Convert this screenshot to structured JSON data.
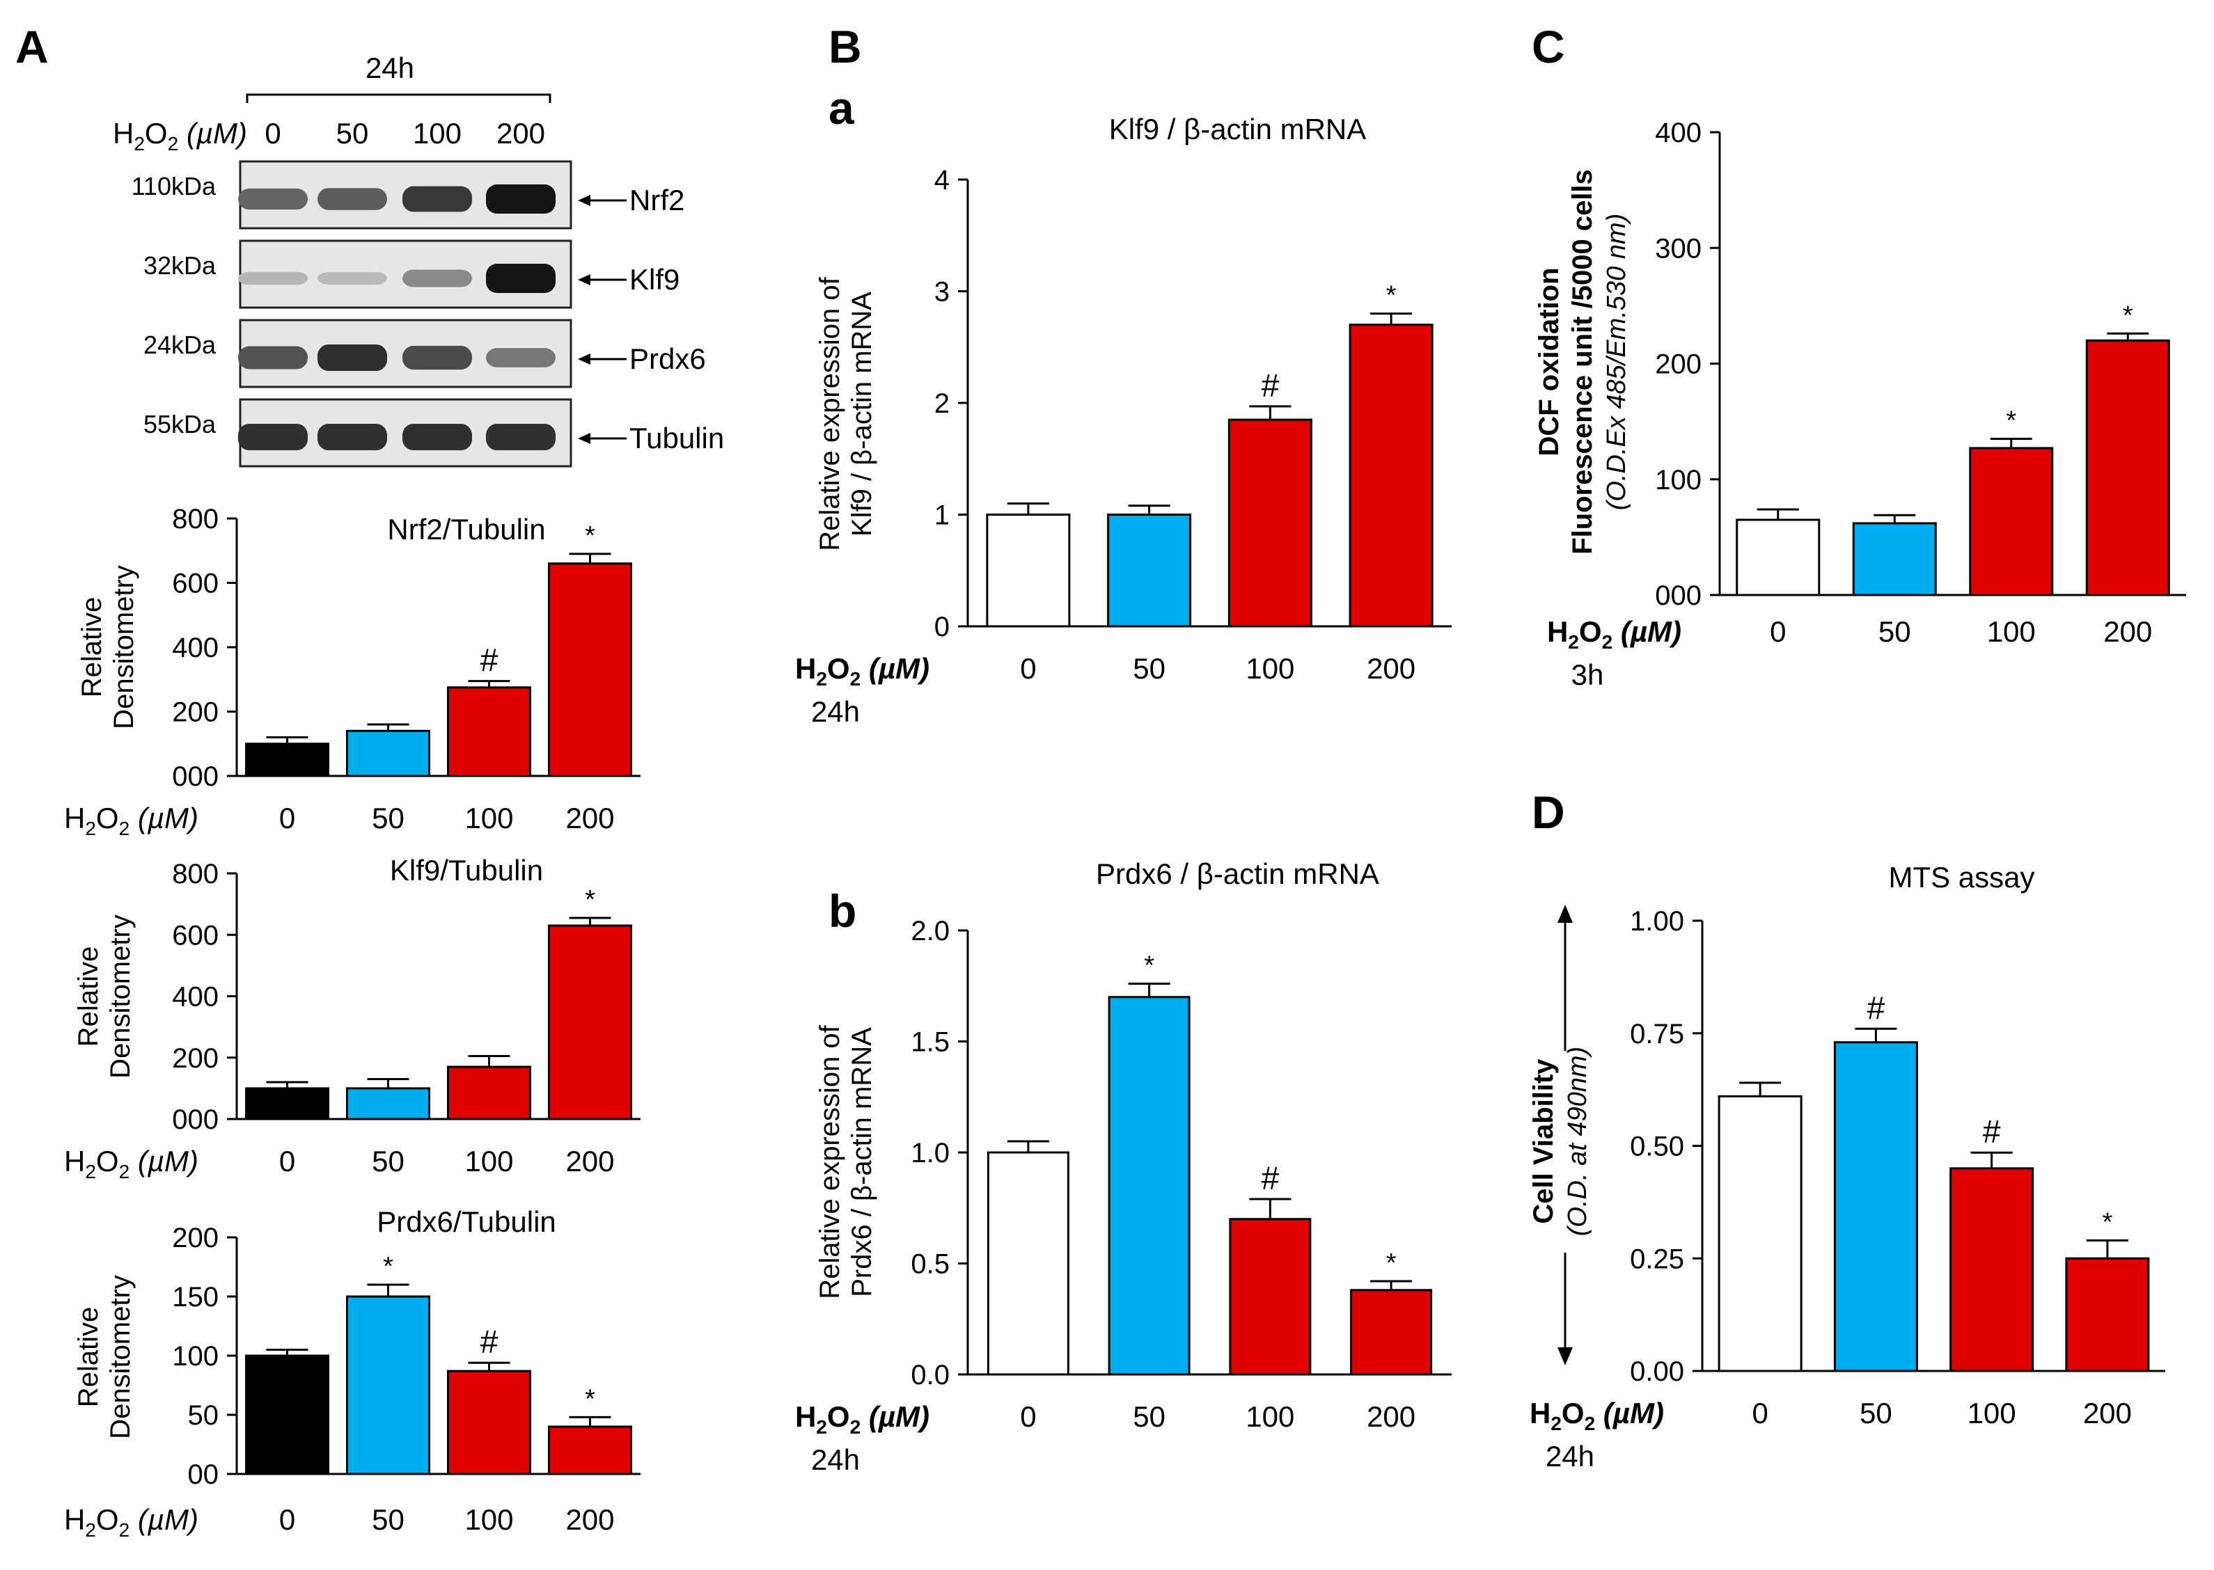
{
  "figure": {
    "background": "#ffffff"
  },
  "colors": {
    "black": "#000000",
    "white": "#ffffff",
    "blue": "#00aeef",
    "red": "#e00000"
  },
  "panel_labels": {
    "A": "A",
    "B": "B",
    "a": "a",
    "b": "b",
    "C": "C",
    "D": "D"
  },
  "blot": {
    "time": "24h",
    "treatment_label": "H2O2 (µM)",
    "doses": [
      "0",
      "50",
      "100",
      "200"
    ],
    "bands": [
      {
        "kda": "110kDa",
        "name": "Nrf2",
        "intensities": [
          0.55,
          0.6,
          0.8,
          1.0
        ]
      },
      {
        "kda": "32kDa",
        "name": "Klf9",
        "intensities": [
          0.1,
          0.08,
          0.35,
          1.0
        ]
      },
      {
        "kda": "24kDa",
        "name": "Prdx6",
        "intensities": [
          0.65,
          0.85,
          0.7,
          0.45
        ]
      },
      {
        "kda": "55kDa",
        "name": "Tubulin",
        "intensities": [
          0.85,
          0.85,
          0.85,
          0.85
        ]
      }
    ]
  },
  "chart_data": [
    {
      "id": "A1",
      "type": "bar",
      "title": "Nrf2/Tubulin",
      "ylabel": [
        "Relative",
        "Densitometry"
      ],
      "xlabel_prefix": "H2O2 (µM)",
      "categories": [
        "0",
        "50",
        "100",
        "200"
      ],
      "values": [
        100,
        140,
        275,
        660
      ],
      "errors": [
        20,
        20,
        20,
        30
      ],
      "markers": [
        "",
        "",
        "#",
        "*"
      ],
      "colors": [
        "#000000",
        "#00aeef",
        "#e00000",
        "#e00000"
      ],
      "ylim": [
        0,
        800
      ],
      "yticks": [
        0,
        200,
        400,
        600,
        800
      ],
      "ytick_labels": [
        "000",
        "200",
        "400",
        "600",
        "800"
      ]
    },
    {
      "id": "A2",
      "type": "bar",
      "title": "Klf9/Tubulin",
      "ylabel": [
        "Relative",
        "Densitometry"
      ],
      "xlabel_prefix": "H2O2 (µM)",
      "categories": [
        "0",
        "50",
        "100",
        "200"
      ],
      "values": [
        100,
        100,
        170,
        630
      ],
      "errors": [
        20,
        30,
        35,
        25
      ],
      "markers": [
        "",
        "",
        "",
        "*"
      ],
      "colors": [
        "#000000",
        "#00aeef",
        "#e00000",
        "#e00000"
      ],
      "ylim": [
        0,
        800
      ],
      "yticks": [
        0,
        200,
        400,
        600,
        800
      ],
      "ytick_labels": [
        "000",
        "200",
        "400",
        "600",
        "800"
      ]
    },
    {
      "id": "A3",
      "type": "bar",
      "title": "Prdx6/Tubulin",
      "ylabel": [
        "Relative",
        "Densitometry"
      ],
      "xlabel_prefix": "H2O2 (µM)",
      "categories": [
        "0",
        "50",
        "100",
        "200"
      ],
      "values": [
        100,
        150,
        87,
        40
      ],
      "errors": [
        5,
        10,
        7,
        8
      ],
      "markers": [
        "",
        "*",
        "#",
        "*"
      ],
      "colors": [
        "#000000",
        "#00aeef",
        "#e00000",
        "#e00000"
      ],
      "ylim": [
        0,
        200
      ],
      "yticks": [
        0,
        50,
        100,
        150,
        200
      ],
      "ytick_labels": [
        "00",
        "50",
        "100",
        "150",
        "200"
      ]
    },
    {
      "id": "Ba",
      "type": "bar",
      "title": "Klf9 / β-actin mRNA",
      "ylabel": [
        "Relative expression of",
        "Klf9 / β-actin mRNA"
      ],
      "xlabel_prefix": "H2O2 (µM)",
      "time": "24h",
      "categories": [
        "0",
        "50",
        "100",
        "200"
      ],
      "values": [
        1.0,
        1.0,
        1.85,
        2.7
      ],
      "errors": [
        0.1,
        0.08,
        0.12,
        0.1
      ],
      "markers": [
        "",
        "",
        "#",
        "*"
      ],
      "colors": [
        "#ffffff",
        "#00aeef",
        "#e00000",
        "#e00000"
      ],
      "ylim": [
        0,
        4
      ],
      "yticks": [
        0,
        1,
        2,
        3,
        4
      ],
      "ytick_labels": [
        "0",
        "1",
        "2",
        "3",
        "4"
      ]
    },
    {
      "id": "Bb",
      "type": "bar",
      "title": "Prdx6 / β-actin mRNA",
      "ylabel": [
        "Relative expression of",
        "Prdx6 / β-actin mRNA"
      ],
      "xlabel_prefix": "H2O2 (µM)",
      "time": "24h",
      "categories": [
        "0",
        "50",
        "100",
        "200"
      ],
      "values": [
        1.0,
        1.7,
        0.7,
        0.38
      ],
      "errors": [
        0.05,
        0.06,
        0.09,
        0.04
      ],
      "markers": [
        "",
        "*",
        "#",
        "*"
      ],
      "colors": [
        "#ffffff",
        "#00aeef",
        "#e00000",
        "#e00000"
      ],
      "ylim": [
        0,
        2
      ],
      "yticks": [
        0,
        0.5,
        1,
        1.5,
        2
      ],
      "ytick_labels": [
        "0.0",
        "0.5",
        "1.0",
        "1.5",
        "2.0"
      ]
    },
    {
      "id": "C",
      "type": "bar",
      "title": "",
      "ylabel_bold": [
        "DCF oxidation",
        "Fluorescence unit /5000 cells"
      ],
      "ylabel_italic": "(O.D.Ex 485/Em.530 nm)",
      "xlabel_prefix": "H2O2 (µM)",
      "time": "3h",
      "categories": [
        "0",
        "50",
        "100",
        "200"
      ],
      "values": [
        65,
        62,
        127,
        220
      ],
      "errors": [
        9,
        7,
        8,
        6
      ],
      "markers": [
        "",
        "",
        "*",
        "*"
      ],
      "colors": [
        "#ffffff",
        "#00aeef",
        "#e00000",
        "#e00000"
      ],
      "ylim": [
        0,
        400
      ],
      "yticks": [
        0,
        100,
        200,
        300,
        400
      ],
      "ytick_labels": [
        "000",
        "100",
        "200",
        "300",
        "400"
      ]
    },
    {
      "id": "D",
      "type": "bar",
      "title": "MTS assay",
      "ylabel_bold": [
        "Cell Viability"
      ],
      "ylabel_italic": "(O.D. at 490nm)",
      "xlabel_prefix": "H2O2 (µM)",
      "time": "24h",
      "categories": [
        "0",
        "50",
        "100",
        "200"
      ],
      "values": [
        0.61,
        0.73,
        0.45,
        0.25
      ],
      "errors": [
        0.03,
        0.03,
        0.035,
        0.04
      ],
      "markers": [
        "",
        "#",
        "#",
        "*"
      ],
      "colors": [
        "#ffffff",
        "#00aeef",
        "#e00000",
        "#e00000"
      ],
      "ylim": [
        0,
        1
      ],
      "yticks": [
        0,
        0.25,
        0.5,
        0.75,
        1
      ],
      "ytick_labels": [
        "0.00",
        "0.25",
        "0.50",
        "0.75",
        "1.00"
      ]
    }
  ]
}
